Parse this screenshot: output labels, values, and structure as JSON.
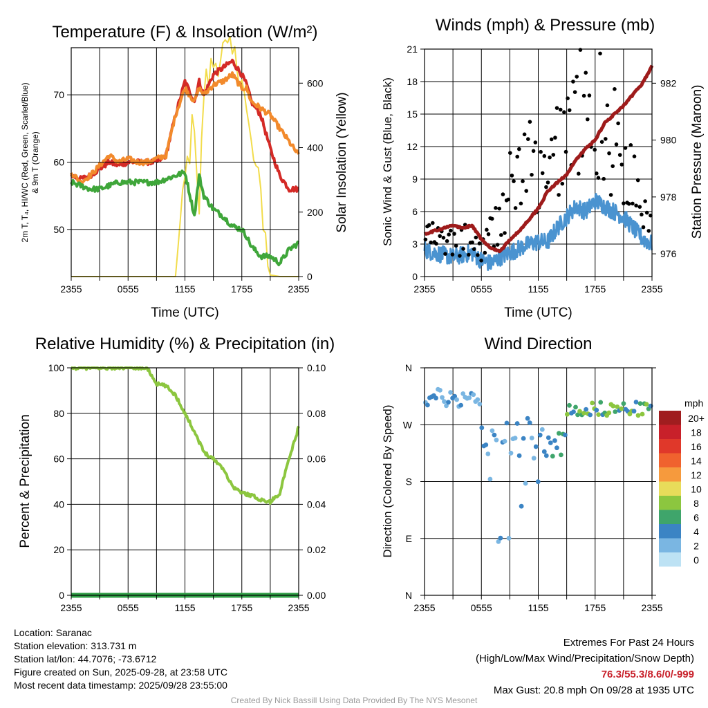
{
  "chart_data": [
    {
      "id": "temp",
      "type": "line",
      "title": "Temperature (F) & Insolation (W/m²)",
      "xlabel": "Time (UTC)",
      "ylabel_lines": [
        "2m T, T₄, HI/WC (Red, Green, Scarlet/Blue)",
        "& 9m T (Orange)"
      ],
      "y2label": "Solar Insolation (Yellow)",
      "xticks": [
        "2355",
        "0555",
        "1155",
        "1755",
        "2355"
      ],
      "x": [
        0,
        1,
        2,
        3,
        4,
        5,
        6,
        7,
        8,
        9,
        10,
        11,
        12,
        13,
        13.5,
        14,
        15,
        16,
        17,
        18,
        18.5,
        19,
        20,
        21,
        22,
        23,
        24
      ],
      "ylim": [
        43,
        77
      ],
      "yticks": [
        50,
        60,
        70
      ],
      "y2lim": [
        0,
        710
      ],
      "y2ticks": [
        0,
        200,
        400,
        600
      ],
      "series": [
        {
          "name": "2m T",
          "color": "#d42a26",
          "axis": "left",
          "values": [
            58,
            57.5,
            58,
            59,
            60,
            59.5,
            60,
            60,
            60,
            60,
            61,
            67,
            72,
            69,
            72,
            70,
            73,
            74,
            75,
            73,
            71.5,
            69,
            67,
            62,
            58,
            56,
            56
          ]
        },
        {
          "name": "9m T",
          "color": "#f28a2c",
          "axis": "left",
          "values": [
            58.5,
            57,
            58,
            59.5,
            61,
            60,
            60.5,
            60,
            60,
            60.5,
            61,
            67,
            71,
            69,
            71,
            70,
            71.5,
            72,
            73,
            71,
            71,
            69,
            68,
            67,
            65,
            63,
            61
          ]
        },
        {
          "name": "Dewpoint",
          "color": "#3fa63a",
          "axis": "left",
          "values": [
            57,
            56.5,
            56,
            56,
            56.5,
            57,
            57,
            57,
            57,
            57,
            57.5,
            58,
            58.5,
            52,
            58,
            55,
            53,
            52,
            50.5,
            50,
            49,
            47.5,
            46,
            46,
            45,
            47,
            48
          ]
        },
        {
          "name": "Solar Insolation",
          "color": "#f2dc4b",
          "axis": "right",
          "values": [
            0,
            0,
            0,
            0,
            0,
            0,
            0,
            0,
            0,
            0,
            0,
            0,
            300,
            500,
            200,
            580,
            660,
            700,
            680,
            640,
            500,
            400,
            250,
            5,
            0,
            0,
            0
          ]
        }
      ]
    },
    {
      "id": "wind",
      "type": "line",
      "title": "Winds (mph) & Pressure (mb)",
      "xlabel": "Time (UTC)",
      "ylabel": "Sonic Wind & Gust (Blue, Black)",
      "y2label": "Station Pressure (Maroon)",
      "xticks": [
        "2355",
        "0555",
        "1155",
        "1755",
        "2355"
      ],
      "x": [
        0,
        1,
        2,
        3,
        4,
        5,
        6,
        7,
        8,
        9,
        10,
        11,
        12,
        13,
        14,
        15,
        16,
        17,
        18,
        19,
        20,
        21,
        22,
        23,
        24
      ],
      "ylim": [
        0,
        21
      ],
      "yticks": [
        0,
        3,
        6,
        9,
        12,
        15,
        18,
        21
      ],
      "y2lim": [
        975.2,
        983.2
      ],
      "y2ticks": [
        976,
        978,
        980,
        982
      ],
      "series": [
        {
          "name": "Sonic Wind",
          "color": "#4a93d0",
          "axis": "left",
          "values": [
            2.5,
            2.2,
            2.0,
            1.8,
            2.0,
            2.2,
            1.5,
            1.2,
            1.8,
            2.2,
            2.6,
            3.0,
            3.2,
            3.2,
            4.5,
            5.5,
            6.5,
            6.0,
            7.0,
            6.5,
            6.0,
            5.5,
            4.5,
            3.5,
            3.0
          ]
        },
        {
          "name": "Wind Gust",
          "color": "#000000",
          "axis": "left",
          "values": [
            4.0,
            3.5,
            3.2,
            3.0,
            3.5,
            3.0,
            2.5,
            4.0,
            5.5,
            8.0,
            9.5,
            10.5,
            9.0,
            8.0,
            12.0,
            14.0,
            15.5,
            14.0,
            16.0,
            13.5,
            12.5,
            11.0,
            9.0,
            7.0,
            5.0
          ]
        },
        {
          "name": "Station Pressure",
          "color": "#9e1b1b",
          "axis": "right",
          "values": [
            976.7,
            976.8,
            976.9,
            977.0,
            976.9,
            977.0,
            976.5,
            976.2,
            976.1,
            976.5,
            976.8,
            977.2,
            977.6,
            978.2,
            978.5,
            978.8,
            979.3,
            979.7,
            980.0,
            980.6,
            980.9,
            981.2,
            981.6,
            982.0,
            982.6
          ]
        }
      ],
      "scatter_seed": 7
    },
    {
      "id": "rh",
      "type": "line",
      "title": "Relative Humidity (%) & Precipitation (in)",
      "xlabel": "",
      "ylabel": "Percent & Precipitation",
      "xticks": [
        "2355",
        "0555",
        "1155",
        "1755",
        "2355"
      ],
      "x": [
        0,
        1,
        2,
        3,
        4,
        5,
        6,
        7,
        8,
        9,
        10,
        11,
        12,
        13,
        14,
        15,
        16,
        17,
        18,
        19,
        20,
        21,
        22,
        23,
        24
      ],
      "ylim": [
        0,
        100
      ],
      "yticks": [
        0,
        20,
        40,
        60,
        80,
        100
      ],
      "y2lim": [
        0,
        0.1
      ],
      "y2ticks": [
        "0.00",
        "0.02",
        "0.04",
        "0.06",
        "0.08",
        "0.10"
      ],
      "series": [
        {
          "name": "Relative Humidity",
          "color": "#8cc63f",
          "axis": "left",
          "values": [
            100,
            100,
            100,
            100,
            100,
            100,
            100,
            100,
            100,
            93,
            92,
            88,
            80,
            72,
            63,
            60,
            56,
            48,
            45,
            44,
            42,
            41,
            45,
            60,
            74
          ]
        },
        {
          "name": "Precipitation",
          "color": "#2f9e45",
          "axis": "right",
          "values": [
            0,
            0,
            0,
            0,
            0,
            0,
            0,
            0,
            0,
            0,
            0,
            0,
            0,
            0,
            0,
            0,
            0,
            0,
            0,
            0,
            0,
            0,
            0,
            0,
            0
          ]
        }
      ]
    },
    {
      "id": "dir",
      "type": "scatter",
      "title": "Wind Direction",
      "xlabel": "",
      "ylabel": "Direction (Colored By Speed)",
      "xticks": [
        "2355",
        "0555",
        "1155",
        "1755",
        "2355"
      ],
      "ytick_labels": [
        "N",
        "E",
        "S",
        "W",
        "N"
      ],
      "ylim": [
        0,
        360
      ],
      "legend_title": "mph",
      "legend_labels": [
        "20+",
        "18",
        "16",
        "14",
        "12",
        "10",
        "8",
        "6",
        "4",
        "2",
        "0"
      ],
      "legend_colors": [
        "#a01d1f",
        "#c8202a",
        "#e0382a",
        "#f0622e",
        "#f69a3d",
        "#e8dc5a",
        "#8cc63f",
        "#3fa56b",
        "#3b84c4",
        "#7ab6e2",
        "#bde2f4"
      ]
    }
  ],
  "info": {
    "location": "Location: Saranac",
    "elevation": "Station elevation: 313.731 m",
    "latlon": "Station lat/lon: 44.7076; -73.6712",
    "created": "Figure created on Sun, 2025-09-28, at 23:58 UTC",
    "recent": "Most recent data timestamp: 2025/09/28 23:55:00"
  },
  "extremes": {
    "title": "Extremes For Past 24 Hours",
    "subtitle": "(High/Low/Max Wind/Precipitation/Snow Depth)",
    "values": "76.3/55.3/8.6/0/-999",
    "max_gust": "Max Gust: 20.8 mph On 09/28 at 1935 UTC"
  },
  "credit": "Created By Nick Bassill Using Data Provided By The NYS Mesonet"
}
